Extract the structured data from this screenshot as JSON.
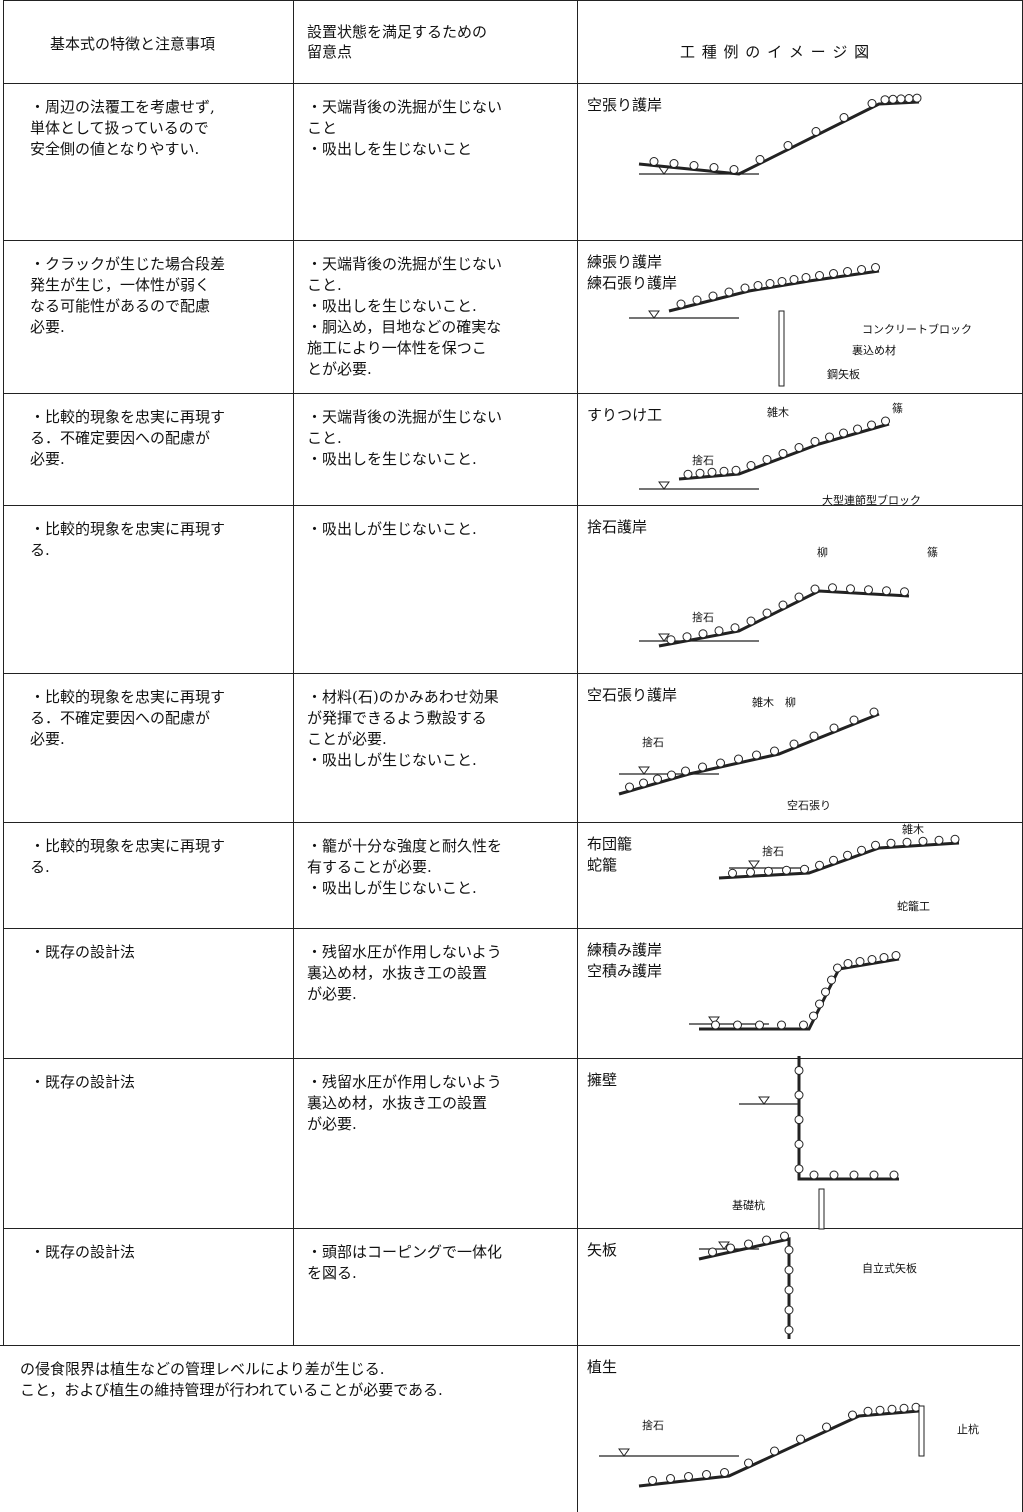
{
  "header": {
    "columns": [
      [
        "基本式の特徴と注意事項"
      ],
      [
        "設置状態を満足するための",
        "留意点"
      ],
      [
        "工 種 例 の イ メ ー ジ 図"
      ]
    ]
  },
  "table": {
    "rows": [
      {
        "features": [
          "・周辺の法覆工を考慮せず,",
          "単体として扱っているので",
          "安全側の値となりやすい."
        ],
        "notes": [
          "・天端背後の洗掘が生じない",
          "こと",
          "・吸出しを生じないこと"
        ],
        "example": [
          "空張り護岸"
        ],
        "labels": []
      },
      {
        "features": [
          "・クラックが生じた場合段差",
          "発生が生じ，一体性が弱く",
          "なる可能性があるので配慮",
          "必要."
        ],
        "notes": [
          "・天端背後の洗掘が生じない",
          "こと.",
          "・吸出しを生じないこと.",
          "・胴込め，目地などの確実な",
          "施工により一体性を保つこ",
          "とが必要."
        ],
        "example": [
          "練張り護岸",
          "練石張り護岸"
        ],
        "labels": [
          "コンクリートブロック",
          "裏込め材",
          "鋼矢板"
        ]
      },
      {
        "features": [
          "・比較的現象を忠実に再現す",
          "る．不確定要因への配慮が",
          "必要."
        ],
        "notes": [
          "・天端背後の洗掘が生じない",
          "こと.",
          "・吸出しを生じないこと."
        ],
        "example": [
          "すりつけ工"
        ],
        "labels": [
          "雑木",
          "篠",
          "捨石",
          "大型連節型ブロック"
        ]
      },
      {
        "features": [
          "・比較的現象を忠実に再現す",
          "る."
        ],
        "notes": [
          "・吸出しが生じないこと."
        ],
        "example": [
          "捨石護岸"
        ],
        "labels": [
          "柳",
          "篠",
          "捨石"
        ]
      },
      {
        "features": [
          "・比較的現象を忠実に再現す",
          "る．不確定要因への配慮が",
          "必要."
        ],
        "notes": [
          "・材料(石)のかみあわせ効果",
          "が発揮できるよう敷設する",
          "ことが必要.",
          "・吸出しが生じないこと."
        ],
        "example": [
          "空石張り護岸"
        ],
        "labels": [
          "雑木　柳",
          "捨石",
          "空石張り"
        ]
      },
      {
        "features": [
          "・比較的現象を忠実に再現す",
          "る."
        ],
        "notes": [
          "・籠が十分な強度と耐久性を",
          "有することが必要.",
          "・吸出しが生じないこと."
        ],
        "example": [
          "布団籠",
          "蛇籠"
        ],
        "labels": [
          "雑木",
          "捨石",
          "蛇籠工"
        ]
      },
      {
        "features": [
          "・既存の設計法"
        ],
        "notes": [
          "・残留水圧が作用しないよう",
          "裏込め材，水抜き工の設置",
          "が必要."
        ],
        "example": [
          "練積み護岸",
          "空積み護岸"
        ],
        "labels": []
      },
      {
        "features": [
          "・既存の設計法"
        ],
        "notes": [
          "・残留水圧が作用しないよう",
          "裏込め材，水抜き工の設置",
          "が必要."
        ],
        "example": [
          "擁壁"
        ],
        "labels": [
          "基礎杭"
        ]
      },
      {
        "features": [
          "・既存の設計法"
        ],
        "notes": [
          "・頭部はコーピングで一体化",
          "を図る."
        ],
        "example": [
          "矢板"
        ],
        "labels": [
          "自立式矢板"
        ]
      },
      {
        "merged": [
          "の侵食限界は植生などの管理レベルにより差が生じる.",
          "こと，および植生の維持管理が行われていることが必要である."
        ],
        "example": [
          "植生"
        ],
        "labels": [
          "捨石",
          "止杭"
        ]
      }
    ]
  }
}
